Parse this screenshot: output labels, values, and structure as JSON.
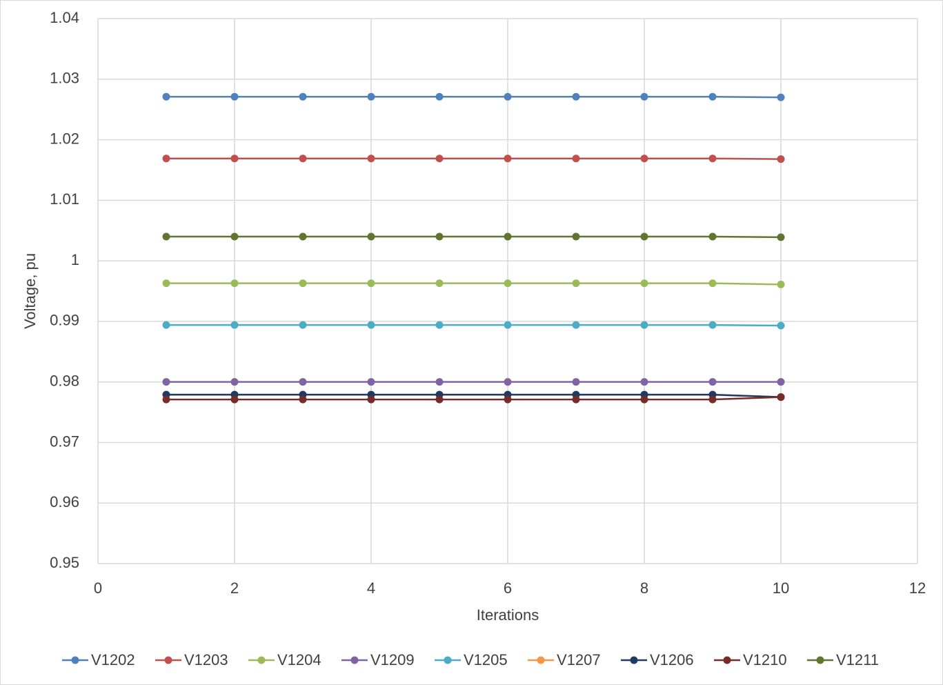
{
  "chart_data": {
    "type": "line",
    "x_label": "Iterations",
    "y_label": "Voltage, pu",
    "x": [
      1,
      2,
      3,
      4,
      5,
      6,
      7,
      8,
      9,
      10
    ],
    "xlim": [
      0,
      12
    ],
    "xticks": [
      0,
      2,
      4,
      6,
      8,
      10,
      12
    ],
    "ylim": [
      0.95,
      1.04
    ],
    "yticks": [
      0.95,
      0.96,
      0.97,
      0.98,
      0.99,
      1,
      1.01,
      1.02,
      1.03,
      1.04
    ],
    "grid": true,
    "legend": "bottom",
    "series": [
      {
        "name": "V1202",
        "color": "#4f81bd",
        "values": [
          1.0271,
          1.0271,
          1.0271,
          1.0271,
          1.0271,
          1.0271,
          1.0271,
          1.0271,
          1.0271,
          1.027
        ]
      },
      {
        "name": "V1203",
        "color": "#c0504d",
        "values": [
          1.0169,
          1.0169,
          1.0169,
          1.0169,
          1.0169,
          1.0169,
          1.0169,
          1.0169,
          1.0169,
          1.0168
        ]
      },
      {
        "name": "V1204",
        "color": "#9bbb59",
        "values": [
          0.9963,
          0.9963,
          0.9963,
          0.9963,
          0.9963,
          0.9963,
          0.9963,
          0.9963,
          0.9963,
          0.9961
        ]
      },
      {
        "name": "V1209",
        "color": "#8064a2",
        "values": [
          0.98,
          0.98,
          0.98,
          0.98,
          0.98,
          0.98,
          0.98,
          0.98,
          0.98,
          0.98
        ]
      },
      {
        "name": "V1205",
        "color": "#4bacc6",
        "values": [
          0.9894,
          0.9894,
          0.9894,
          0.9894,
          0.9894,
          0.9894,
          0.9894,
          0.9894,
          0.9894,
          0.9893
        ]
      },
      {
        "name": "V1207",
        "color": "#f79646",
        "values": [
          0.9779,
          0.9779,
          0.9779,
          0.9779,
          0.9779,
          0.9779,
          0.9779,
          0.9779,
          0.9779,
          0.9775
        ]
      },
      {
        "name": "V1206",
        "color": "#1f3b63",
        "values": [
          0.9779,
          0.9779,
          0.9779,
          0.9779,
          0.9779,
          0.9779,
          0.9779,
          0.9779,
          0.9779,
          0.9775
        ]
      },
      {
        "name": "V1210",
        "color": "#772c2a",
        "values": [
          0.9771,
          0.9771,
          0.9771,
          0.9771,
          0.9771,
          0.9771,
          0.9771,
          0.9771,
          0.9771,
          0.9775
        ]
      },
      {
        "name": "V1211",
        "color": "#5f7530",
        "values": [
          1.004,
          1.004,
          1.004,
          1.004,
          1.004,
          1.004,
          1.004,
          1.004,
          1.004,
          1.0039
        ]
      }
    ]
  }
}
